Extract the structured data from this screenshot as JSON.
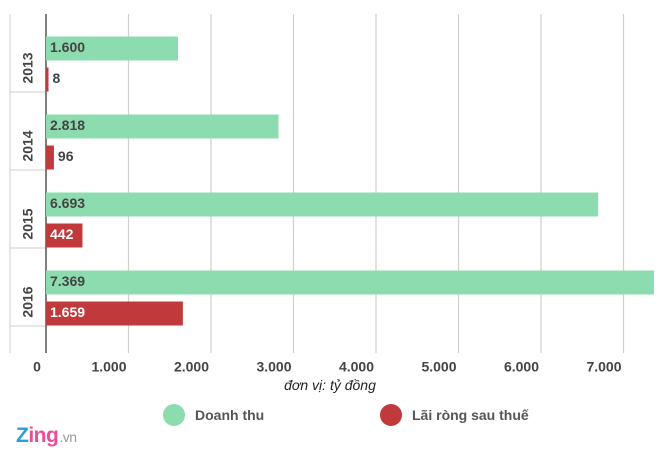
{
  "chart_data": {
    "type": "bar",
    "orientation": "horizontal",
    "categories": [
      "2013",
      "2014",
      "2015",
      "2016"
    ],
    "series": [
      {
        "name": "Doanh thu",
        "color": "#8ddcb0",
        "values": [
          1600,
          2818,
          6693,
          7369
        ],
        "labels": [
          "1.600",
          "2.818",
          "6.693",
          "7.369"
        ]
      },
      {
        "name": "Lãi ròng sau thuế",
        "color": "#c0393b",
        "values": [
          8,
          96,
          442,
          1659
        ],
        "labels": [
          "8",
          "96",
          "442",
          "1.659"
        ]
      }
    ],
    "xticks": [
      0,
      1000,
      2000,
      3000,
      4000,
      5000,
      6000,
      7000
    ],
    "xtick_labels": [
      "0",
      "1.000",
      "2.000",
      "3.000",
      "4.000",
      "5.000",
      "6.000",
      "7.000"
    ],
    "xlim": [
      0,
      7400
    ],
    "xlabel": "đơn vị: tỷ đồng",
    "grid": true,
    "legend_position": "bottom"
  },
  "logo": {
    "brand_z": "Z",
    "brand_ing": "ing",
    "brand_tld": ".vn"
  }
}
